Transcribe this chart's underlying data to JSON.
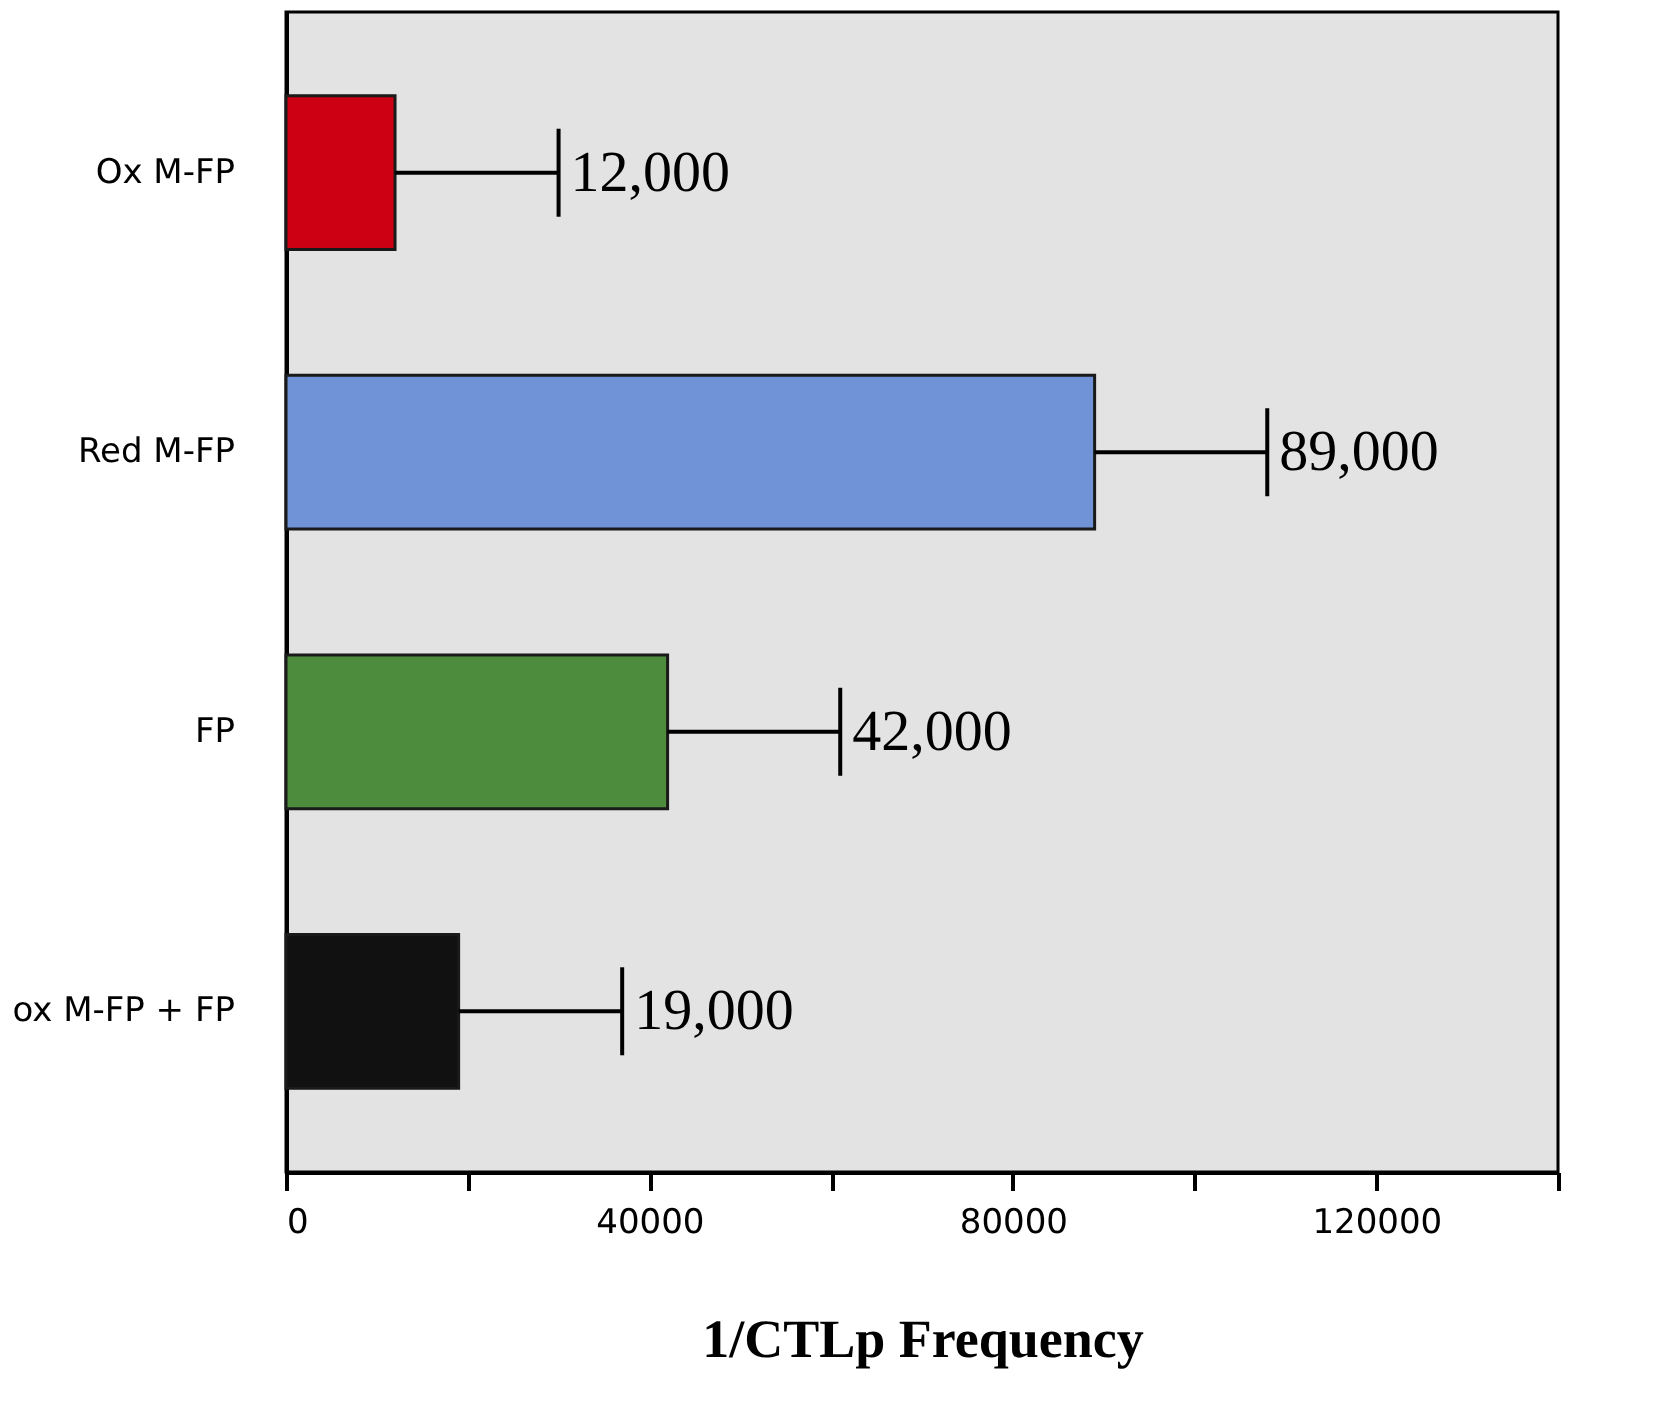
{
  "chart_data": {
    "type": "bar",
    "orientation": "horizontal",
    "xlabel": "1/CTLp Frequency",
    "categories": [
      "Ox M-FP",
      "Red M-FP",
      "FP",
      "ox M-FP + FP"
    ],
    "values": [
      12000,
      89000,
      42000,
      19000
    ],
    "colors": [
      "#cc0012",
      "#6f93d6",
      "#4c8c3c",
      "#111111"
    ],
    "errors": [
      [
        12000,
        30000
      ],
      [
        89000,
        108000
      ],
      [
        42000,
        61000
      ],
      [
        19000,
        37000
      ]
    ],
    "value_labels": [
      "12,000",
      "89,000",
      "42,000",
      "19,000"
    ],
    "xlim": [
      0,
      140000
    ],
    "xticks": [
      0,
      {
        "value": 20000,
        "label": null
      },
      40000,
      {
        "value": 60000,
        "label": null
      },
      80000,
      {
        "value": 100000,
        "label": null
      },
      120000,
      {
        "value": 140000,
        "label": null
      }
    ],
    "grid": false,
    "legend": false
  }
}
